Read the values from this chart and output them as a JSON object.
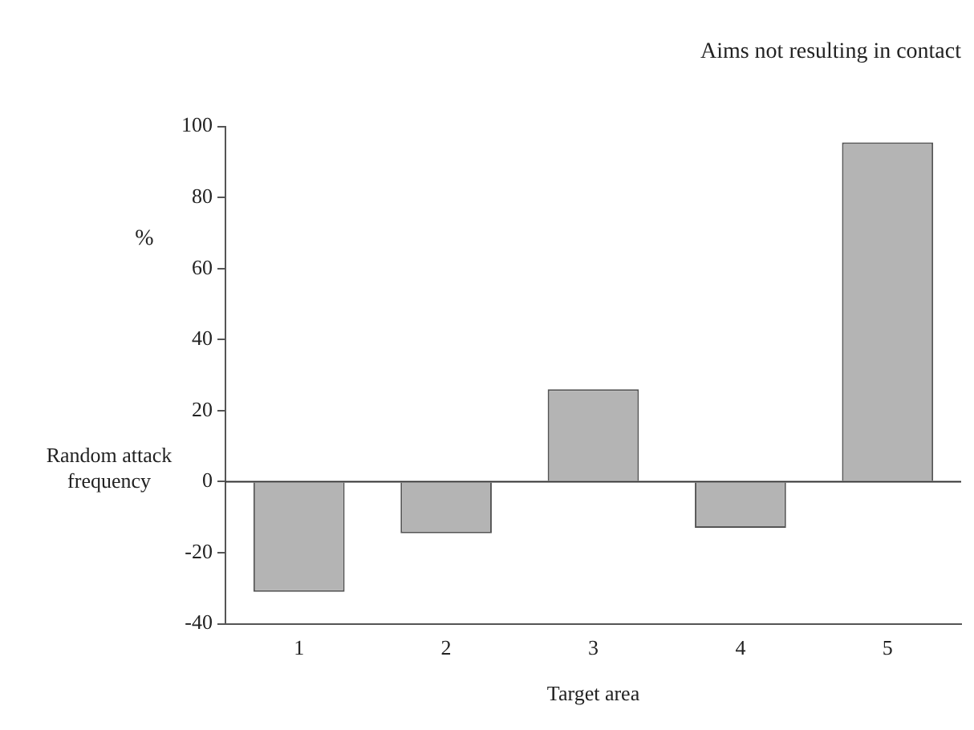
{
  "chart_data": {
    "type": "bar",
    "title": "Aims not resulting in contact",
    "xlabel": "Target area",
    "ylabel": "%",
    "categories": [
      "1",
      "2",
      "3",
      "4",
      "5"
    ],
    "values": [
      -31,
      -14.5,
      26,
      -13,
      95.5
    ],
    "color": "#b4b4b4",
    "ylim": [
      -40,
      100
    ],
    "yticks": [
      -40,
      -20,
      0,
      20,
      40,
      60,
      80,
      100
    ],
    "grid": false,
    "legend": false,
    "ref_lines": [
      {
        "axis": "y",
        "value": 0,
        "label": "Random attack frequency",
        "color": "#333333"
      }
    ]
  }
}
